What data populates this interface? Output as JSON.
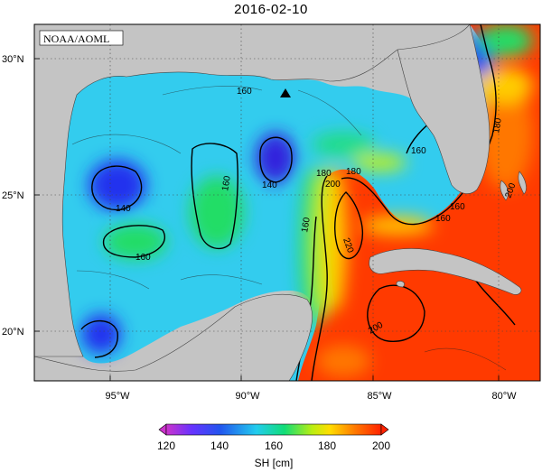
{
  "title": "2016-02-10",
  "credit": "NOAA/AOML",
  "lat_labels": [
    "30°N",
    "25°N",
    "20°N"
  ],
  "lon_labels": [
    "95°W",
    "90°W",
    "85°W",
    "80°W"
  ],
  "colorbar": {
    "ticks": [
      "120",
      "140",
      "160",
      "180",
      "200"
    ],
    "label": "SH [cm]",
    "colors": [
      "#cc33cc",
      "#6633ff",
      "#2255ee",
      "#22ccee",
      "#11dd77",
      "#bbee11",
      "#ffdd00",
      "#ff7700",
      "#ff2200"
    ]
  },
  "contour_labels": [
    "160",
    "140",
    "160",
    "160",
    "140",
    "160",
    "160",
    "180",
    "160",
    "160",
    "180",
    "200",
    "220",
    "200",
    "180",
    "200"
  ],
  "marker_icon": "triangle-marker-icon",
  "colors": {
    "land": "#c4c4c4",
    "sea_base": "#33ccee",
    "frame": "#000000"
  }
}
